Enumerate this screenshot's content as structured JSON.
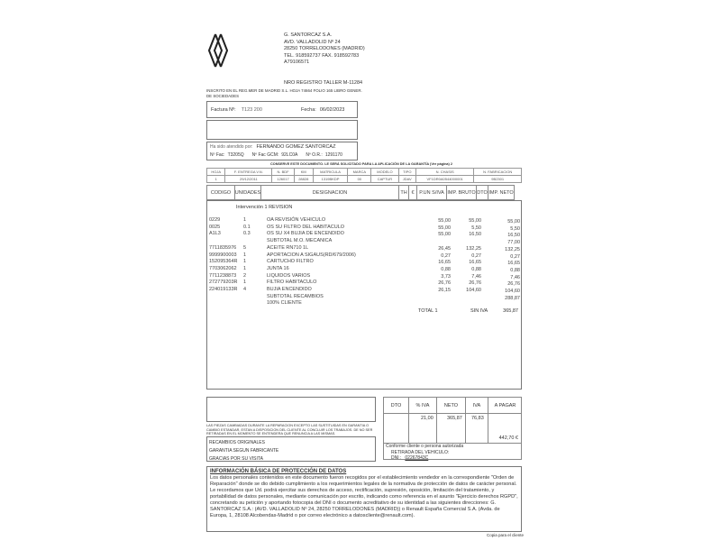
{
  "company": {
    "name": "G. SANTORCAZ S.A.",
    "address": "AVD. VALLADOLID Nº 24",
    "city": "28250 TORRELODONES (MADRID)",
    "phone": "TEL. 918592737 FAX. 918592783",
    "cif": "A79106571",
    "registry": "NRO REGISTRO TALLER   M-11284",
    "inscription": "INSCRITO EN EL REG.MER DE MADRID S.L. HOJA 74664 FOLIO 165 LIBRO GENER. DE SOCIEDADES"
  },
  "invoice": {
    "number_label": "Factura Nº:",
    "number": "T123 200",
    "date_label": "Fecha:",
    "date": "06/02/2023",
    "attended_label": "Ha sido atendido por:",
    "attended_by": "FERNANDO GOMEZ SANTORCAZ",
    "nfac_label": "Nº Fac:",
    "nfac": "T3205Q",
    "nfac_gcm_label": "Nº Fac GCM:",
    "nfac_gcm": "92LC0A",
    "nor_label": "Nº O.R.:",
    "nor": "1291170"
  },
  "notice": "CONSERVE ESTE DOCUMENTO. LE SERÁ SOLICITADO PARA LA APLICACIÓN DE LA GARANTÍA (Ver página)  2",
  "vehicle": {
    "headers": [
      "HOJA",
      "F. ENTREGA V.N.",
      "N. BDF",
      "KM",
      "MATRICULA",
      "MARCA",
      "MODELO",
      "TIPO",
      "N. CHASIS",
      "N. FABRICACION"
    ],
    "row1": [
      "1",
      "29/12/2011",
      "126017",
      "28828",
      "1319BKDP",
      "00",
      "CAPTUR",
      "",
      "VF1DR0A0544000001",
      "9B2301"
    ],
    "row2_tipo": "JDAV"
  },
  "columns": [
    "CODIGO",
    "UNIDADES",
    "DESIGNACION",
    "TH",
    "€",
    "P.UN S/IVA",
    "IMP. BRUTO",
    "DTO",
    "IMP. NETO"
  ],
  "intervention": "Intervención  1  REVISION",
  "lines": [
    {
      "code": "0229",
      "units": "1",
      "desc": "OA REVISIÓN VEHICULO",
      "pun": "55,00",
      "bruto": "55,00",
      "neto": "55,00"
    },
    {
      "code": "0025",
      "units": "0.1",
      "desc": "OS SU FILTRO DEL HABITACULO",
      "pun": "55,00",
      "bruto": "5,50",
      "neto": "5,50"
    },
    {
      "code": "A1L3",
      "units": "0.3",
      "desc": "OS SU X4 BUJIA DE ENCENDIDO",
      "pun": "55,00",
      "bruto": "16,50",
      "neto": "16,50"
    },
    {
      "code": "",
      "units": "",
      "desc": "SUBTOTAL   M.O. MECANICA",
      "pun": "",
      "bruto": "",
      "neto": "77,00"
    },
    {
      "code": "7711835976",
      "units": "5",
      "desc": "ACEITE RN710 1L",
      "pun": "26,45",
      "bruto": "132,25",
      "neto": "132,25"
    },
    {
      "code": "9999900003",
      "units": "1",
      "desc": "APORTACION A SIGAUS(RD/679/2006)",
      "pun": "0,27",
      "bruto": "0,27",
      "neto": "0,27"
    },
    {
      "code": "152095364R",
      "units": "1",
      "desc": "CARTUCHO FILTRO",
      "pun": "16,65",
      "bruto": "16,65",
      "neto": "16,65"
    },
    {
      "code": "7703062062",
      "units": "1",
      "desc": "JUNTA 16",
      "pun": "0,88",
      "bruto": "0,88",
      "neto": "0,88"
    },
    {
      "code": "7711238873",
      "units": "2",
      "desc": "LIQUIDOS VARIOS",
      "pun": "3,73",
      "bruto": "7,46",
      "neto": "7,46"
    },
    {
      "code": "272779203R",
      "units": "1",
      "desc": "FILTRO HABITACULO",
      "pun": "26,76",
      "bruto": "26,76",
      "neto": "26,76"
    },
    {
      "code": "224019133R",
      "units": "4",
      "desc": "BUJIA ENCENDIDO",
      "pun": "26,15",
      "bruto": "104,60",
      "neto": "104,60"
    },
    {
      "code": "",
      "units": "",
      "desc": "SUBTOTAL   RECAMBIOS",
      "pun": "",
      "bruto": "",
      "neto": "288,87"
    },
    {
      "code": "",
      "units": "",
      "desc": "100% CLIENTE",
      "pun": "",
      "bruto": "",
      "neto": ""
    }
  ],
  "total": {
    "label": "TOTAL   1",
    "siniva_label": "SIN IVA",
    "value": "365,87"
  },
  "conditions": "LAS PIEZAS CAMBIADAS DURANTE LA REPARACION EXCEPTO LAS SUSTITUIDAS EN GARANTIA O CAMBIO ESTANDAR, ESTAN A DISPOSICION DEL CLIENTE AL CONCLUIR LOS TRABAJOS. DE NO SER RETIRADAS EN EL MOMENTO SE ENTENDERA QUE RENUNCIA A LAS MISMAS.",
  "notes": [
    "RECAMBIOS ORIGINALES",
    "GARANTIA SEGUN FABRICANTE",
    "GRACIAS POR SU VISITA"
  ],
  "summary": {
    "headers": [
      "DTO",
      "% IVA",
      "NETO",
      "IVA",
      "A PAGAR"
    ],
    "iva_pct": "21,00",
    "neto": "365,87",
    "iva": "76,83",
    "a_pagar": "442,70 €"
  },
  "conformity": {
    "line1": "Conforme cliente o persona autorizada",
    "line2": "RETIRADA DEL VEHICULO:",
    "dni_label": "DNI :",
    "dni": "02267843C"
  },
  "data_protection": {
    "title": "INFORMACIÓN BÁSICA DE PROTECCIÓN DE DATOS",
    "body": "Los datos personales contenidos en este documento fueron recogidos por el establecimiento vendedor en la correspondiente \"Orden de Reparación\" donde se dio debido cumplimiento a los requerimientos legales de la normativa de protección de datos de carácter personal. Le recordamos que Ud. podrá ejercitar sus derechos de acceso, rectificación, supresión, oposición, limitación del tratamiento, y portabilidad de datos personales, mediante comunicación por escrito, indicando como referencia en el asunto \"Ejercicio derechos RGPD\", concretando su petición y aportando fotocopia del DNI o documento acreditativo de su identidad a las siguientes direcciones: G. SANTORCAZ S.A.: (AVD. VALLADOLID Nº 24, 28250 TORRELODONES (MADRID)) o Renault España Comercial S.A. (Avda. de Europa, 1, 28108 Alcobendas-Madrid o por correo electrónico a datoscliente@renault.com)."
  },
  "footer": "Copia para el cliente"
}
